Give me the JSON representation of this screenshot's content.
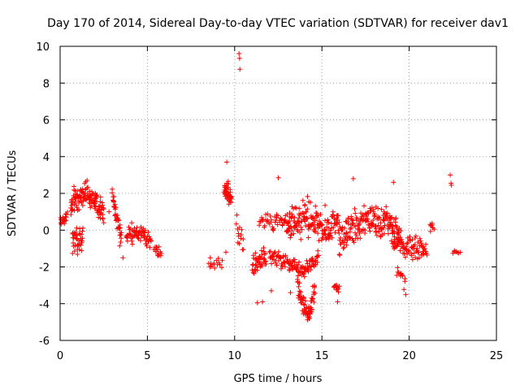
{
  "chart_data": {
    "type": "scatter",
    "title": "Day 170 of 2014, Sidereal Day-to-day VTEC variation (SDTVAR) for receiver dav1",
    "xlabel": "GPS time / hours",
    "ylabel": "SDTVAR / TECUs",
    "xlim": [
      0,
      25
    ],
    "ylim": [
      -6,
      10
    ],
    "xticks": [
      0,
      5,
      10,
      15,
      20,
      25
    ],
    "yticks": [
      -6,
      -4,
      -2,
      0,
      2,
      4,
      6,
      8,
      10
    ],
    "grid": true,
    "marker": "plus",
    "color": "#ff0000",
    "segments": [
      {
        "x0": 0.0,
        "x1": 0.4,
        "center": [
          [
            0.0,
            0.6
          ],
          [
            0.4,
            0.8
          ]
        ],
        "spread": 0.7,
        "n": 20
      },
      {
        "x0": 0.6,
        "x1": 2.5,
        "center": [
          [
            0.6,
            1.5
          ],
          [
            1.2,
            1.9
          ],
          [
            1.8,
            1.8
          ],
          [
            2.5,
            0.9
          ]
        ],
        "spread": 1.0,
        "n": 130
      },
      {
        "x0": 0.7,
        "x1": 1.3,
        "center": [
          [
            0.7,
            -0.4
          ],
          [
            1.3,
            -0.6
          ]
        ],
        "spread": 1.3,
        "n": 40
      },
      {
        "x0": 3.0,
        "x1": 3.5,
        "center": [
          [
            3.0,
            2.0
          ],
          [
            3.5,
            -0.6
          ]
        ],
        "spread": 0.9,
        "n": 40
      },
      {
        "x0": 3.8,
        "x1": 5.2,
        "center": [
          [
            3.8,
            -0.3
          ],
          [
            4.5,
            -0.1
          ],
          [
            5.2,
            -0.6
          ]
        ],
        "spread": 0.7,
        "n": 70
      },
      {
        "x0": 5.4,
        "x1": 5.8,
        "center": [
          [
            5.4,
            -0.8
          ],
          [
            5.8,
            -1.4
          ]
        ],
        "spread": 0.6,
        "n": 18
      },
      {
        "x0": 8.5,
        "x1": 9.3,
        "center": [
          [
            8.5,
            -1.9
          ],
          [
            9.3,
            -1.8
          ]
        ],
        "spread": 0.5,
        "n": 14
      },
      {
        "x0": 9.4,
        "x1": 9.8,
        "center": [
          [
            9.4,
            2.3
          ],
          [
            9.8,
            1.8
          ]
        ],
        "spread": 0.9,
        "n": 45
      },
      {
        "x0": 10.1,
        "x1": 10.5,
        "center": [
          [
            10.1,
            0.2
          ],
          [
            10.5,
            -1.0
          ]
        ],
        "spread": 1.2,
        "n": 14
      },
      {
        "x0": 11.0,
        "x1": 11.8,
        "center": [
          [
            11.0,
            -1.9
          ],
          [
            11.8,
            -1.5
          ]
        ],
        "spread": 1.1,
        "n": 45
      },
      {
        "x0": 11.4,
        "x1": 13.2,
        "center": [
          [
            11.4,
            0.4
          ],
          [
            12.3,
            0.5
          ],
          [
            13.2,
            0.3
          ]
        ],
        "spread": 0.7,
        "n": 50
      },
      {
        "x0": 12.0,
        "x1": 14.8,
        "center": [
          [
            12.0,
            -1.4
          ],
          [
            13.0,
            -1.8
          ],
          [
            14.0,
            -2.2
          ],
          [
            14.8,
            -1.5
          ]
        ],
        "spread": 0.6,
        "n": 120
      },
      {
        "x0": 13.6,
        "x1": 14.6,
        "center": [
          [
            13.6,
            -3.0
          ],
          [
            14.0,
            -4.3
          ],
          [
            14.3,
            -4.6
          ],
          [
            14.6,
            -3.0
          ]
        ],
        "spread": 0.8,
        "n": 70
      },
      {
        "x0": 13.0,
        "x1": 16.0,
        "center": [
          [
            13.0,
            0.3
          ],
          [
            14.0,
            0.8
          ],
          [
            15.0,
            0.0
          ],
          [
            16.0,
            0.3
          ]
        ],
        "spread": 1.5,
        "n": 170
      },
      {
        "x0": 15.7,
        "x1": 16.0,
        "center": [
          [
            15.7,
            -3.0
          ],
          [
            16.0,
            -3.2
          ]
        ],
        "spread": 0.5,
        "n": 12
      },
      {
        "x0": 16.0,
        "x1": 19.5,
        "center": [
          [
            16.0,
            -0.5
          ],
          [
            17.5,
            0.5
          ],
          [
            19.0,
            0.3
          ],
          [
            19.5,
            -0.5
          ]
        ],
        "spread": 1.3,
        "n": 200
      },
      {
        "x0": 19.0,
        "x1": 21.0,
        "center": [
          [
            19.0,
            -0.6
          ],
          [
            20.0,
            -1.0
          ],
          [
            21.0,
            -0.9
          ]
        ],
        "spread": 0.9,
        "n": 90
      },
      {
        "x0": 19.3,
        "x1": 19.8,
        "center": [
          [
            19.3,
            -2.0
          ],
          [
            19.8,
            -3.0
          ]
        ],
        "spread": 1.0,
        "n": 14
      },
      {
        "x0": 21.2,
        "x1": 21.4,
        "center": [
          [
            21.2,
            0.3
          ],
          [
            21.4,
            0.2
          ]
        ],
        "spread": 0.6,
        "n": 8
      },
      {
        "x0": 22.5,
        "x1": 22.9,
        "center": [
          [
            22.5,
            -1.1
          ],
          [
            22.9,
            -1.2
          ]
        ],
        "spread": 0.2,
        "n": 8
      }
    ],
    "points": [
      [
        10.25,
        9.6
      ],
      [
        10.28,
        9.35
      ],
      [
        10.3,
        8.75
      ],
      [
        22.35,
        3.0
      ],
      [
        22.4,
        2.55
      ],
      [
        22.42,
        2.45
      ],
      [
        9.55,
        3.7
      ],
      [
        12.5,
        2.85
      ],
      [
        16.8,
        2.8
      ],
      [
        19.1,
        2.6
      ],
      [
        11.6,
        -3.9
      ],
      [
        11.3,
        -3.95
      ],
      [
        14.3,
        -4.8
      ],
      [
        14.2,
        -4.75
      ],
      [
        13.2,
        -3.4
      ],
      [
        15.9,
        -3.9
      ],
      [
        9.5,
        -1.2
      ],
      [
        8.6,
        -1.5
      ],
      [
        2.8,
        1.0
      ],
      [
        3.6,
        -1.5
      ],
      [
        20.2,
        -1.6
      ],
      [
        12.1,
        -3.3
      ]
    ]
  }
}
